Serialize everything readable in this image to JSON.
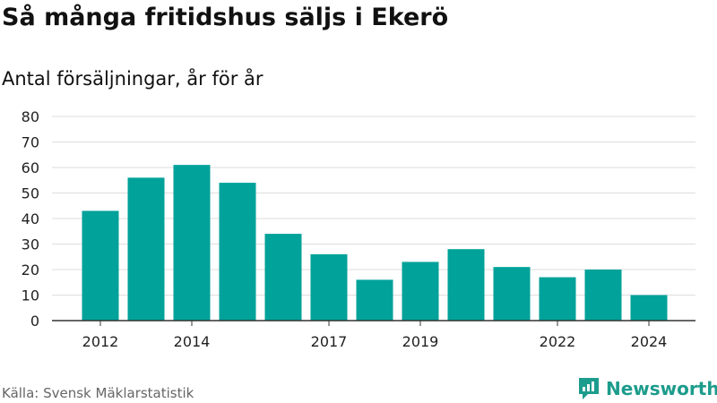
{
  "header": {
    "title": "Så många fritidshus säljs i Ekerö",
    "subtitle": "Antal försäljningar, år för år"
  },
  "footer": {
    "source": "Källa: Svensk Mäklarstatistik",
    "brand": "Newsworthy"
  },
  "colors": {
    "bar": "#00a29a",
    "grid": "#dddddd",
    "axis": "#333333",
    "brand": "#1c9c8c"
  },
  "chart_data": {
    "type": "bar",
    "title": "Så många fritidshus säljs i Ekerö",
    "subtitle": "Antal försäljningar, år för år",
    "categories": [
      "2012",
      "2013",
      "2014",
      "2015",
      "2016",
      "2017",
      "2018",
      "2019",
      "2020",
      "2021",
      "2022",
      "2023",
      "2024"
    ],
    "values": [
      43,
      56,
      61,
      54,
      34,
      26,
      16,
      23,
      28,
      21,
      17,
      20,
      10
    ],
    "x_tick_labels": [
      "2012",
      "2014",
      "2017",
      "2019",
      "2022",
      "2024"
    ],
    "y_ticks": [
      0,
      10,
      20,
      30,
      40,
      50,
      60,
      70,
      80
    ],
    "ylim": [
      0,
      80
    ],
    "grid": true,
    "legend": "none"
  }
}
